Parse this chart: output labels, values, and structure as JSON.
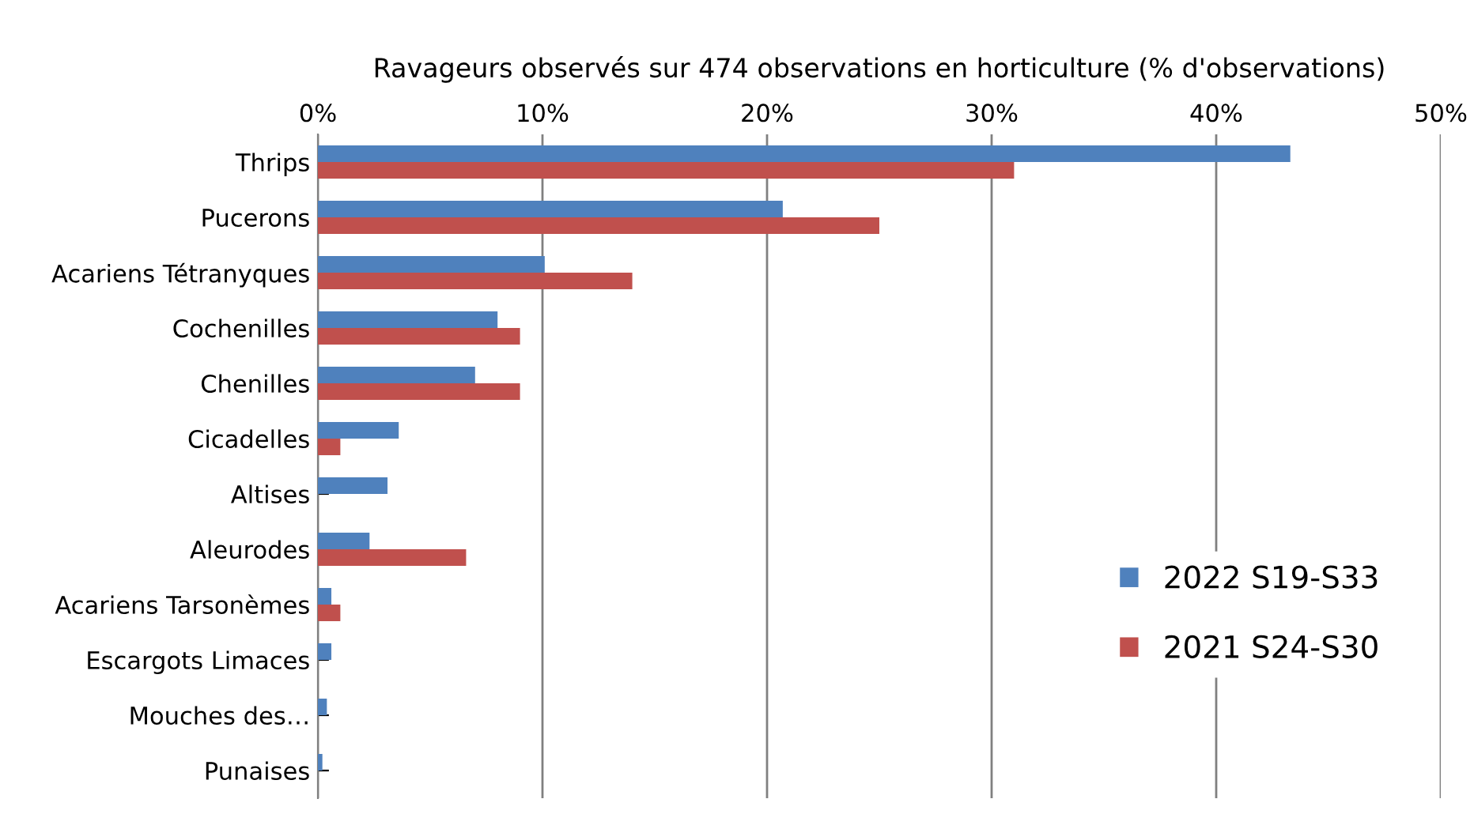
{
  "chart_data": {
    "type": "bar",
    "orientation": "horizontal",
    "title": "Ravageurs observés sur 474 observations en horticulture (% d'observations)",
    "categories": [
      "Thrips",
      "Pucerons",
      "Acariens Tétranyques",
      "Cochenilles",
      "Chenilles",
      "Cicadelles",
      "Altises",
      "Aleurodes",
      "Acariens Tarsonèmes",
      "Escargots Limaces",
      "Mouches des…",
      "Punaises"
    ],
    "series": [
      {
        "name": "2022 S19-S33",
        "color": "#4f81bd",
        "values": [
          43.3,
          20.7,
          10.1,
          8.0,
          7.0,
          3.6,
          3.1,
          2.3,
          0.6,
          0.6,
          0.4,
          0.2
        ]
      },
      {
        "name": "2021 S24-S30",
        "color": "#c0504d",
        "values": [
          31.0,
          25.0,
          14.0,
          9.0,
          9.0,
          1.0,
          null,
          6.6,
          1.0,
          null,
          null,
          null
        ]
      }
    ],
    "xlim": [
      0,
      50
    ],
    "xticks": [
      {
        "value": 0,
        "label": "0%"
      },
      {
        "value": 10,
        "label": "10%"
      },
      {
        "value": 20,
        "label": "20%"
      },
      {
        "value": 30,
        "label": "30%"
      },
      {
        "value": 40,
        "label": "40%"
      },
      {
        "value": 50,
        "label": "50%"
      }
    ],
    "grid": "x",
    "legend": "bottom right"
  }
}
